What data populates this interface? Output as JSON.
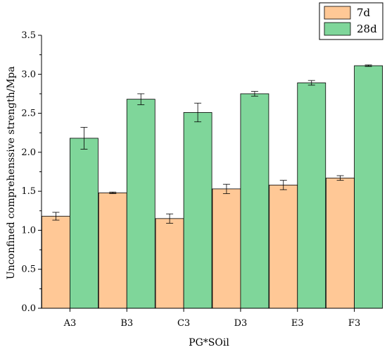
{
  "chart_data": {
    "type": "bar",
    "xlabel": "PG*SOil",
    "ylabel": "Unconfined comprehenssive strength/Mpa",
    "categories": [
      "A3",
      "B3",
      "C3",
      "D3",
      "E3",
      "F3"
    ],
    "ylim": [
      0,
      3.5
    ],
    "yticks": [
      "0.0",
      "0.5",
      "1.0",
      "1.5",
      "2.0",
      "2.5",
      "3.0",
      "3.5"
    ],
    "legend_position": "top-right",
    "grid": false,
    "series": [
      {
        "name": "7d",
        "color": "#FFC896",
        "values": [
          1.18,
          1.48,
          1.15,
          1.53,
          1.58,
          1.67
        ],
        "errors": [
          0.05,
          0.01,
          0.06,
          0.06,
          0.06,
          0.03
        ]
      },
      {
        "name": "28d",
        "color": "#7FD69A",
        "values": [
          2.18,
          2.68,
          2.51,
          2.75,
          2.89,
          3.11
        ],
        "errors": [
          0.14,
          0.07,
          0.12,
          0.03,
          0.03,
          0.01
        ]
      }
    ]
  }
}
